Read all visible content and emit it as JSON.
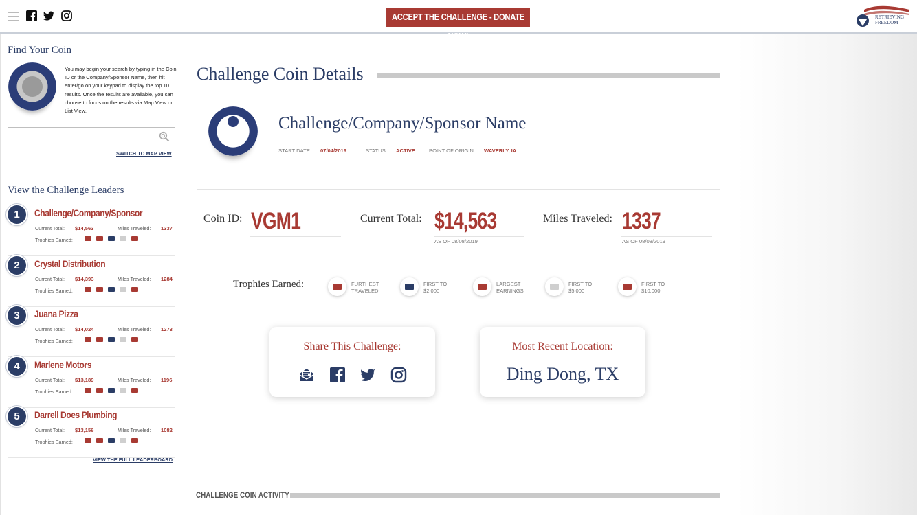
{
  "header": {
    "donate_label": "ACCEPT THE CHALLENGE - DONATE NOW!",
    "brand_line1": "RETRIEVING",
    "brand_line2": "FREEDOM",
    "icons": [
      "menu-icon",
      "facebook-icon",
      "twitter-icon",
      "instagram-icon"
    ]
  },
  "sidebar": {
    "find_title": "Find Your Coin",
    "search_desc": "You may begin your search by typing in the Coin ID or the Company/Sponsor Name, then hit enter/go on your keypad to display the top 10 results. Once the results are available, you can choose to focus on the results via Map View or List View.",
    "search_placeholder": "",
    "map_link": "SWITCH TO MAP VIEW",
    "leaders_title": "View the Challenge Leaders",
    "total_label": "Current Total:",
    "miles_label": "Miles Traveled:",
    "trophies_label": "Trophies Earned:",
    "leaders": [
      {
        "rank": "1",
        "name": "Challenge/Company/Sponsor",
        "total": "$14,563",
        "miles": "1337"
      },
      {
        "rank": "2",
        "name": "Crystal Distribution",
        "total": "$14,393",
        "miles": "1284"
      },
      {
        "rank": "3",
        "name": "Juana Pizza",
        "total": "$14,024",
        "miles": "1273"
      },
      {
        "rank": "4",
        "name": "Marlene Motors",
        "total": "$13,189",
        "miles": "1196"
      },
      {
        "rank": "5",
        "name": "Darrell Does Plumbing",
        "total": "$13,156",
        "miles": "1082"
      }
    ],
    "full_board_link": "VIEW THE FULL LEADERBOARD"
  },
  "main": {
    "title": "Challenge Coin Details",
    "company_name": "Challenge/Company/Sponsor Name",
    "start_date_label": "START DATE:",
    "start_date": "07/04/2019",
    "status_label": "STATUS:",
    "status": "ACTIVE",
    "origin_label": "POINT OF ORIGIN:",
    "origin": "WAVERLY, IA",
    "coin_id_label": "Coin ID:",
    "coin_id": "VGM1",
    "current_total_label": "Current Total:",
    "current_total": "$14,563",
    "current_total_asof": "AS OF 08/08/2019",
    "miles_label": "Miles Traveled:",
    "miles": "1337",
    "miles_asof": "AS OF 08/08/2019",
    "trophies_label": "Trophies Earned:",
    "trophies": [
      {
        "line1": "FURTHEST",
        "line2": "TRAVELED",
        "icon": "hiker-icon",
        "color": "#a83a33"
      },
      {
        "line1": "FIRST TO",
        "line2": "$2,000",
        "icon": "cash-icon",
        "color": "#2b3d66"
      },
      {
        "line1": "LARGEST",
        "line2": "EARNINGS",
        "icon": "money-stack-icon",
        "color": "#a83a33"
      },
      {
        "line1": "FIRST TO",
        "line2": "$5,000",
        "icon": "cash-icon",
        "color": "#cfcfcf"
      },
      {
        "line1": "FIRST TO",
        "line2": "$10,000",
        "icon": "cash-icon",
        "color": "#a83a33"
      }
    ],
    "share_title": "Share This Challenge:",
    "share_icons": [
      "email-icon",
      "facebook-icon",
      "twitter-icon",
      "instagram-icon"
    ],
    "location_title": "Most Recent Location:",
    "location": "Ding Dong, TX",
    "activity_label": "CHALLENGE COIN ACTIVITY"
  },
  "colors": {
    "accent_red": "#a83a33",
    "navy": "#2b3d66"
  }
}
